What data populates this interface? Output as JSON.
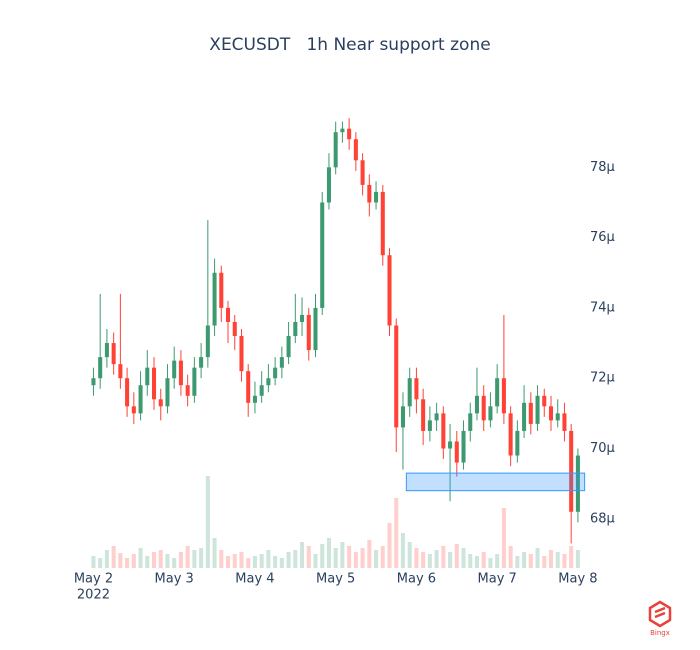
{
  "chart_data": {
    "type": "candlestick",
    "title": "XECUSDT   1h Near support zone",
    "x": [
      0,
      2,
      4,
      6,
      8,
      10,
      12,
      14,
      16,
      18,
      20,
      22,
      24,
      26,
      28,
      30,
      32,
      34,
      36,
      38,
      40,
      42,
      44,
      46,
      48,
      50,
      52,
      54,
      56,
      58,
      60,
      62,
      64,
      66,
      68,
      70,
      72,
      74,
      76,
      78,
      80,
      82,
      84,
      86,
      88,
      90,
      92,
      94,
      96,
      98,
      100,
      102,
      104,
      106,
      108,
      110,
      112,
      114,
      116,
      118,
      120,
      122,
      124,
      126,
      128,
      130,
      132,
      134,
      136,
      138,
      140,
      142,
      144
    ],
    "open": [
      71.8,
      72.0,
      72.6,
      73.0,
      72.4,
      72.0,
      71.2,
      71.0,
      71.8,
      72.3,
      71.4,
      71.2,
      72.0,
      72.5,
      71.8,
      71.5,
      72.3,
      72.6,
      73.5,
      75.0,
      74.0,
      73.6,
      73.2,
      72.2,
      71.3,
      71.5,
      71.8,
      72.0,
      72.3,
      72.6,
      73.2,
      73.6,
      73.8,
      72.8,
      74.0,
      77.0,
      78.0,
      79.0,
      79.1,
      78.8,
      78.2,
      77.5,
      77.0,
      77.3,
      75.5,
      73.5,
      70.6,
      71.2,
      72.0,
      71.4,
      70.5,
      70.8,
      71.0,
      70.0,
      70.2,
      69.6,
      70.5,
      71.0,
      71.5,
      70.8,
      71.2,
      72.0,
      71.0,
      69.8,
      70.5,
      71.3,
      70.7,
      71.5,
      71.2,
      70.8,
      71.0,
      70.5,
      68.2
    ],
    "high": [
      72.3,
      74.4,
      73.4,
      73.3,
      74.4,
      72.3,
      71.6,
      72.2,
      72.8,
      72.6,
      71.7,
      72.4,
      72.9,
      72.8,
      72.1,
      72.6,
      73.0,
      76.5,
      75.4,
      75.2,
      74.2,
      73.8,
      73.4,
      72.4,
      71.9,
      72.2,
      72.4,
      72.6,
      72.9,
      73.6,
      74.4,
      74.3,
      74.0,
      74.4,
      77.3,
      78.4,
      79.3,
      79.3,
      79.4,
      79.0,
      78.4,
      77.8,
      77.6,
      77.5,
      75.7,
      73.7,
      71.6,
      72.3,
      72.3,
      71.7,
      71.2,
      71.3,
      71.2,
      70.7,
      70.5,
      70.8,
      71.3,
      72.3,
      71.8,
      71.6,
      72.4,
      73.8,
      71.2,
      70.8,
      71.8,
      71.6,
      71.8,
      71.7,
      71.5,
      71.4,
      71.3,
      70.7,
      70.0
    ],
    "low": [
      71.5,
      71.7,
      72.3,
      72.1,
      71.7,
      70.9,
      70.7,
      70.8,
      71.5,
      71.1,
      70.8,
      71.0,
      71.7,
      71.5,
      71.2,
      71.3,
      72.0,
      72.3,
      73.2,
      73.6,
      73.0,
      72.8,
      71.9,
      70.9,
      71.0,
      71.3,
      71.6,
      71.8,
      72.0,
      72.4,
      73.0,
      73.2,
      72.5,
      72.6,
      73.8,
      76.8,
      77.8,
      78.7,
      78.5,
      77.9,
      77.2,
      76.6,
      76.8,
      75.2,
      73.2,
      69.9,
      69.4,
      70.9,
      71.0,
      70.1,
      70.2,
      70.5,
      69.7,
      68.5,
      69.2,
      69.4,
      70.2,
      70.8,
      70.5,
      70.6,
      71.0,
      70.7,
      69.5,
      69.6,
      70.3,
      70.4,
      70.5,
      70.9,
      70.5,
      70.6,
      70.2,
      67.3,
      67.9
    ],
    "close": [
      72.0,
      72.6,
      73.0,
      72.4,
      72.0,
      71.2,
      71.0,
      71.8,
      72.3,
      71.4,
      71.2,
      72.0,
      72.5,
      71.8,
      71.5,
      72.3,
      72.6,
      73.5,
      75.0,
      74.0,
      73.6,
      73.2,
      72.2,
      71.3,
      71.5,
      71.8,
      72.0,
      72.3,
      72.6,
      73.2,
      73.6,
      73.8,
      72.8,
      74.0,
      77.0,
      78.0,
      79.0,
      79.1,
      78.8,
      78.2,
      77.5,
      77.0,
      77.3,
      75.5,
      73.5,
      70.6,
      71.2,
      72.0,
      71.4,
      70.5,
      70.8,
      71.0,
      70.0,
      70.2,
      69.6,
      70.5,
      71.0,
      71.5,
      70.8,
      71.2,
      72.0,
      71.0,
      69.8,
      70.5,
      71.3,
      70.7,
      71.5,
      71.2,
      70.8,
      71.0,
      70.5,
      68.2,
      69.8
    ],
    "volume": [
      12,
      10,
      18,
      22,
      15,
      10,
      14,
      20,
      12,
      16,
      18,
      14,
      10,
      16,
      22,
      18,
      20,
      92,
      30,
      18,
      12,
      14,
      16,
      10,
      12,
      14,
      18,
      12,
      10,
      16,
      18,
      26,
      22,
      14,
      24,
      30,
      20,
      26,
      22,
      16,
      20,
      28,
      18,
      22,
      45,
      70,
      35,
      26,
      20,
      16,
      14,
      18,
      22,
      16,
      24,
      20,
      14,
      12,
      16,
      10,
      14,
      60,
      22,
      12,
      16,
      14,
      20,
      12,
      18,
      16,
      14,
      22,
      18
    ],
    "increasing_color": "#3d9970",
    "decreasing_color": "#ff4136",
    "xlim": [
      -4,
      147
    ],
    "xticks": [
      {
        "value": 0,
        "label": "May 2"
      },
      {
        "value": 24,
        "label": "May 3"
      },
      {
        "value": 48,
        "label": "May 4"
      },
      {
        "value": 72,
        "label": "May 5"
      },
      {
        "value": 96,
        "label": "May 6"
      },
      {
        "value": 120,
        "label": "May 7"
      },
      {
        "value": 144,
        "label": "May 8"
      }
    ],
    "x_year_label": "2022",
    "ylim": [
      66.6,
      80.2
    ],
    "yticks": [
      {
        "value": 68,
        "label": "68μ"
      },
      {
        "value": 70,
        "label": "70μ"
      },
      {
        "value": 72,
        "label": "72μ"
      },
      {
        "value": 74,
        "label": "74μ"
      },
      {
        "value": 76,
        "label": "76μ"
      },
      {
        "value": 78,
        "label": "78μ"
      }
    ],
    "volume_lim": [
      0,
      100
    ],
    "zone": {
      "x0": 93,
      "x1": 146,
      "y0": 68.8,
      "y1": 69.3,
      "color": "#3399ff"
    },
    "watermark": "Bingx"
  }
}
